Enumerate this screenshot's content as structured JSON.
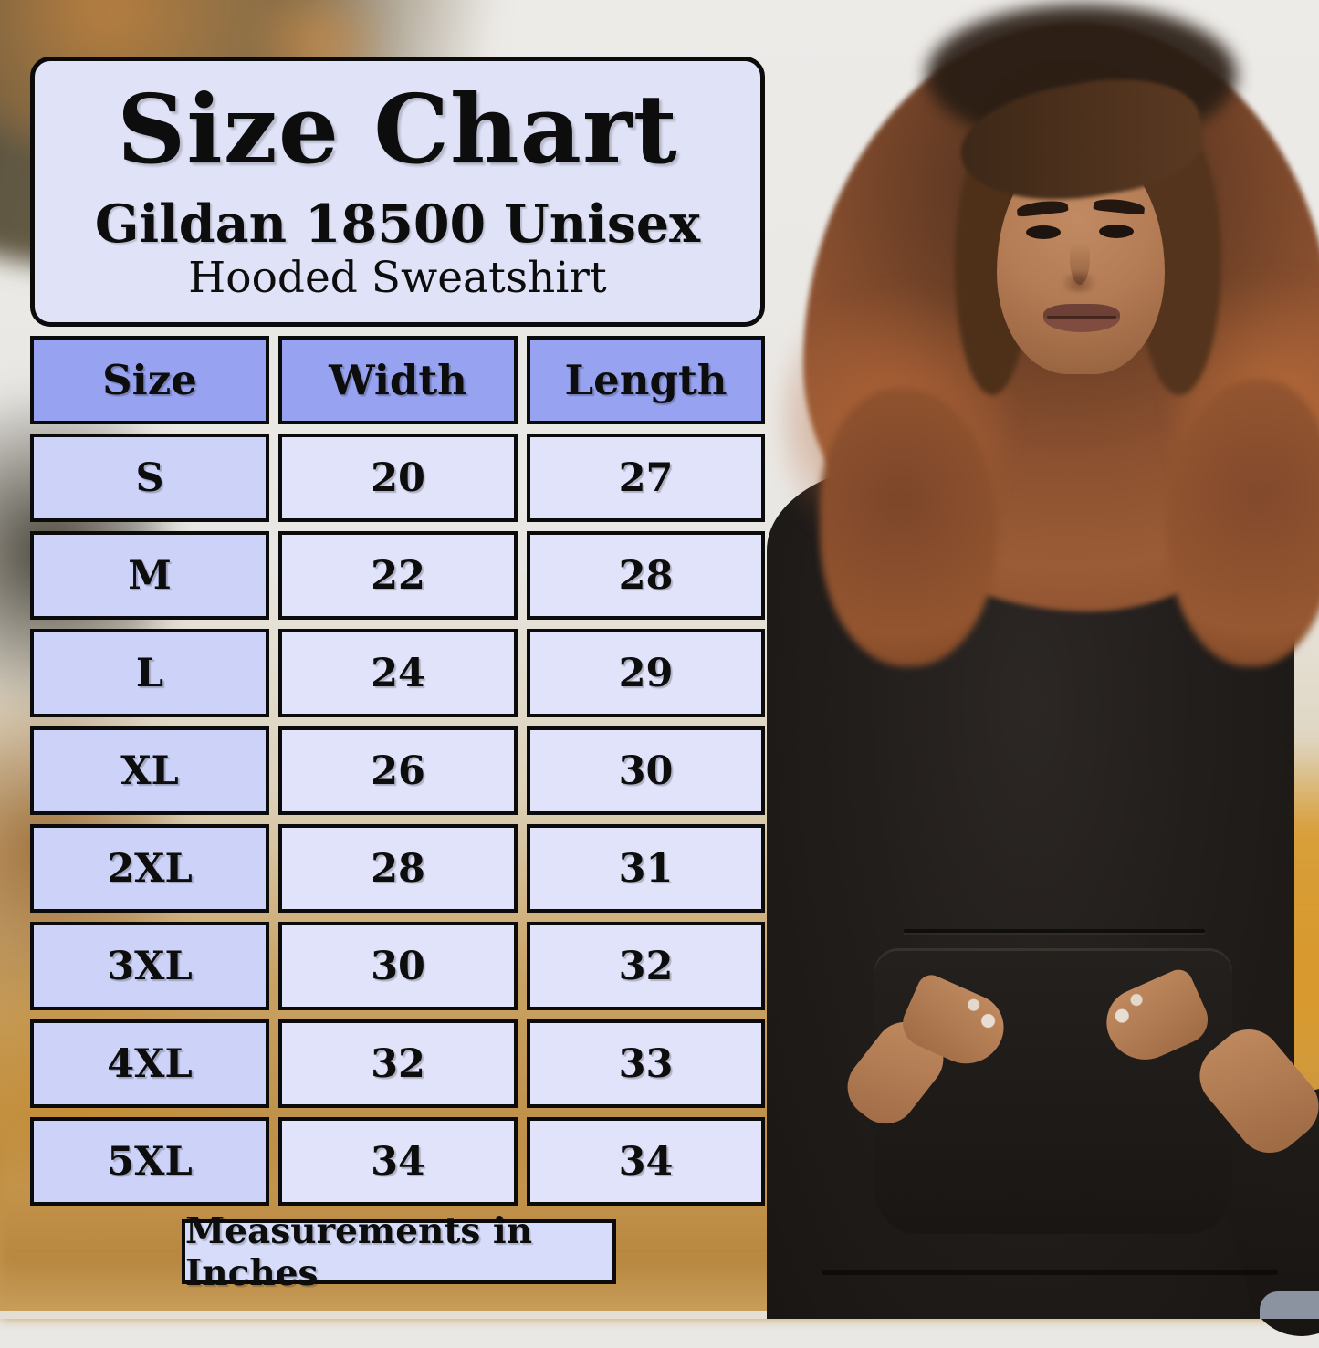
{
  "title_card": {
    "title": "Size Chart",
    "product_line1": "Gildan 18500 Unisex",
    "product_line2": "Hooded Sweatshirt"
  },
  "chart_data": {
    "type": "table",
    "title": "Size Chart",
    "subtitle": "Gildan 18500 Unisex Hooded Sweatshirt",
    "columns": [
      "Size",
      "Width",
      "Length"
    ],
    "rows": [
      [
        "S",
        "20",
        "27"
      ],
      [
        "M",
        "22",
        "28"
      ],
      [
        "L",
        "24",
        "29"
      ],
      [
        "XL",
        "26",
        "30"
      ],
      [
        "2XL",
        "28",
        "31"
      ],
      [
        "3XL",
        "30",
        "32"
      ],
      [
        "4XL",
        "32",
        "33"
      ],
      [
        "5XL",
        "34",
        "34"
      ]
    ],
    "units_note": "Measurements in Inches"
  },
  "footer": {
    "note": "Measurements in Inches"
  },
  "colors": {
    "header_cell": "#97a3f0",
    "size_cell": "#cdd3f8",
    "value_cell": "#e0e3fa",
    "card_bg": "#e0e3f8",
    "note_bg": "#d6dcf9",
    "border": "#0b0b0b",
    "text": "#0d0d0d"
  },
  "photo": {
    "alt": "Model with curly auburn hair wearing a black hooded sweatshirt, hands in kangaroo pocket, blurred autumn outdoor background"
  }
}
